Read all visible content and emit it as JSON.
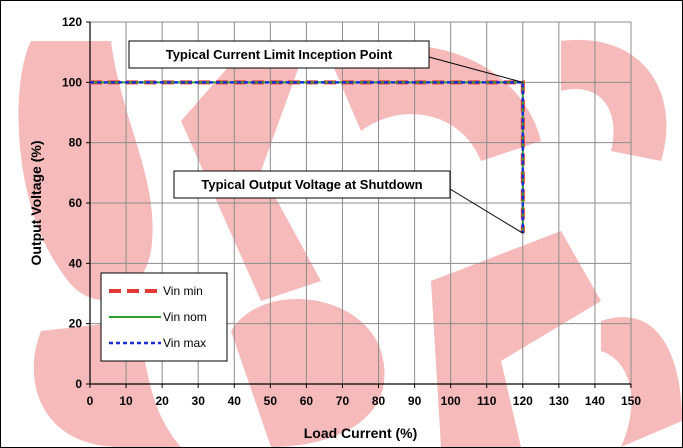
{
  "chart_data": {
    "type": "line",
    "title": "",
    "xlabel": "Load Current (%)",
    "ylabel": "Output Voltage (%)",
    "xlim": [
      0,
      150
    ],
    "ylim": [
      0,
      120
    ],
    "x_ticks": [
      0,
      10,
      20,
      30,
      40,
      50,
      60,
      70,
      80,
      90,
      100,
      110,
      120,
      130,
      140,
      150
    ],
    "y_ticks": [
      0,
      20,
      40,
      60,
      80,
      100,
      120
    ],
    "grid": true,
    "legend_position": "bottom-left",
    "series": [
      {
        "name": "Vin min",
        "color": "#e53935",
        "style": "dashed-thick",
        "x": [
          0,
          120,
          120
        ],
        "y": [
          100,
          100,
          50
        ]
      },
      {
        "name": "Vin nom",
        "color": "#2e9e2e",
        "style": "solid",
        "x": [
          0,
          120,
          120
        ],
        "y": [
          100,
          100,
          50
        ]
      },
      {
        "name": "Vin max",
        "color": "#1a2fd6",
        "style": "dotted",
        "x": [
          0,
          120,
          120
        ],
        "y": [
          100,
          100,
          50
        ]
      }
    ],
    "annotations": [
      {
        "text": "Typical Current Limit Inception Point",
        "x": 120,
        "y": 100
      },
      {
        "text": "Typical Output Voltage at Shutdown",
        "x": 120,
        "y": 50
      }
    ],
    "watermark_color": "#f4a9a9"
  }
}
